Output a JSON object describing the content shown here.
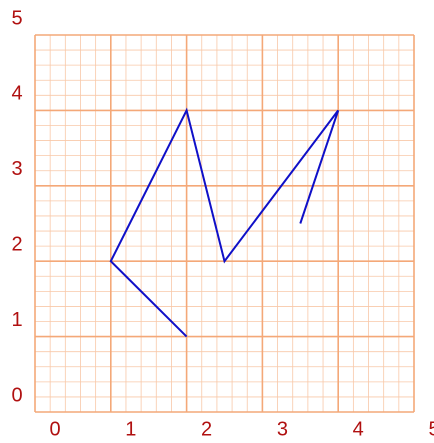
{
  "chart_data": {
    "type": "line",
    "x": [
      2,
      1,
      2,
      2.5,
      4,
      3.5
    ],
    "series": [
      {
        "color": "#1010c8",
        "values": [
          1,
          2,
          4,
          2,
          4,
          2.5
        ]
      }
    ],
    "xlim": [
      0,
      5
    ],
    "ylim": [
      0,
      5
    ],
    "xticks": [
      0,
      1,
      2,
      3,
      4,
      5
    ],
    "yticks": [
      0,
      1,
      2,
      3,
      4,
      5
    ],
    "grid": true
  }
}
